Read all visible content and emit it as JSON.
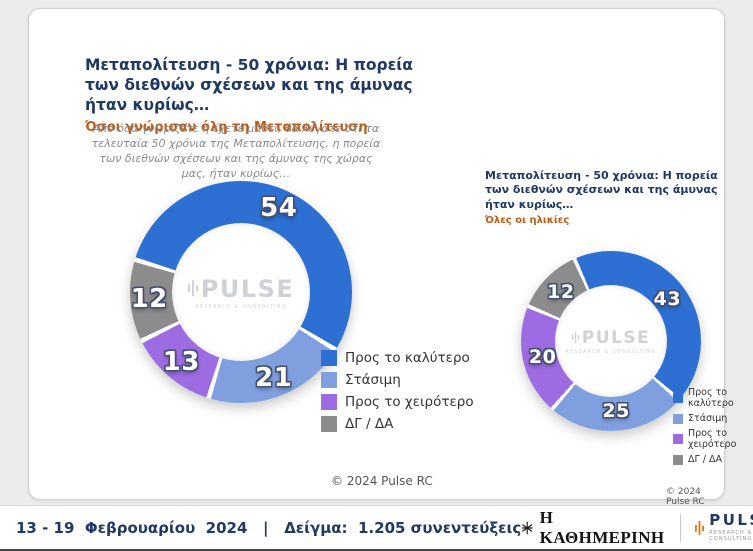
{
  "colors": {
    "navy": "#1f3864",
    "orange": "#c45911",
    "blue": "#2d6fd2",
    "light_blue": "#7f9fdf",
    "purple": "#9d6be2",
    "gray": "#8c8c8c"
  },
  "header": {
    "title": "Μεταπολίτευση - 50 χρόνια: Η πορεία των διεθνών σχέσεων και της άμυνας ήταν κυρίως…",
    "subtitle": "Όσοι γνώρισαν όλη τη Μεταπολίτευση",
    "question": "Από όσα γνωρίζετε ή έχετε μάθει, θα λέγατε ότι τα τελευταία 50 χρόνια της Μεταπολίτευσης, η πορεία των διεθνών σχέσεων και της άμυνας της χώρας μας, ήταν κυρίως…"
  },
  "right_panel": {
    "title": "Μεταπολίτευση - 50 χρόνια: Η πορεία των διεθνών σχέσεων και της άμυνας ήταν κυρίως…",
    "subtitle": "Όλες οι ηλικίες"
  },
  "chart_data": [
    {
      "type": "donut",
      "group": "Όσοι γνώρισαν όλη τη Μεταπολίτευση",
      "categories": [
        "Προς το καλύτερο",
        "Στάσιμη",
        "Προς το χειρότερο",
        "ΔΓ / ΔΑ"
      ],
      "values": [
        54,
        21,
        13,
        12
      ],
      "colors": [
        "#2d6fd2",
        "#7f9fdf",
        "#9d6be2",
        "#8c8c8c"
      ],
      "start_angle": -73
    },
    {
      "type": "donut",
      "group": "Όλες οι ηλικίες",
      "categories": [
        "Προς το καλύτερο",
        "Στάσιμη",
        "Προς το χειρότερο",
        "ΔΓ / ΔΑ"
      ],
      "values": [
        43,
        25,
        20,
        12
      ],
      "colors": [
        "#2d6fd2",
        "#7f9fdf",
        "#9d6be2",
        "#8c8c8c"
      ],
      "start_angle": -24
    }
  ],
  "legend": {
    "items": [
      {
        "label": "Προς το καλύτερο",
        "color": "#2d6fd2"
      },
      {
        "label": "Στάσιμη",
        "color": "#7f9fdf"
      },
      {
        "label": "Προς το χειρότερο",
        "color": "#9d6be2"
      },
      {
        "label": "ΔΓ / ΔΑ",
        "color": "#8c8c8c"
      }
    ]
  },
  "watermark": {
    "text": "PULSE",
    "subtext": "RESEARCH & CONSULTING"
  },
  "copyright": {
    "left": "© 2024 Pulse RC",
    "right": "© 2024 Pulse RC"
  },
  "footer": {
    "text": "13 - 19  Φεβρουαρίου  2024   |   Δείγμα:  1.205 συνεντεύξεις",
    "kathimerini": "Η ΚΑΘΗΜΕΡΙΝΗ",
    "pulse": "PULSE",
    "pulse_sub": "RESEARCH & CONSULTING"
  }
}
